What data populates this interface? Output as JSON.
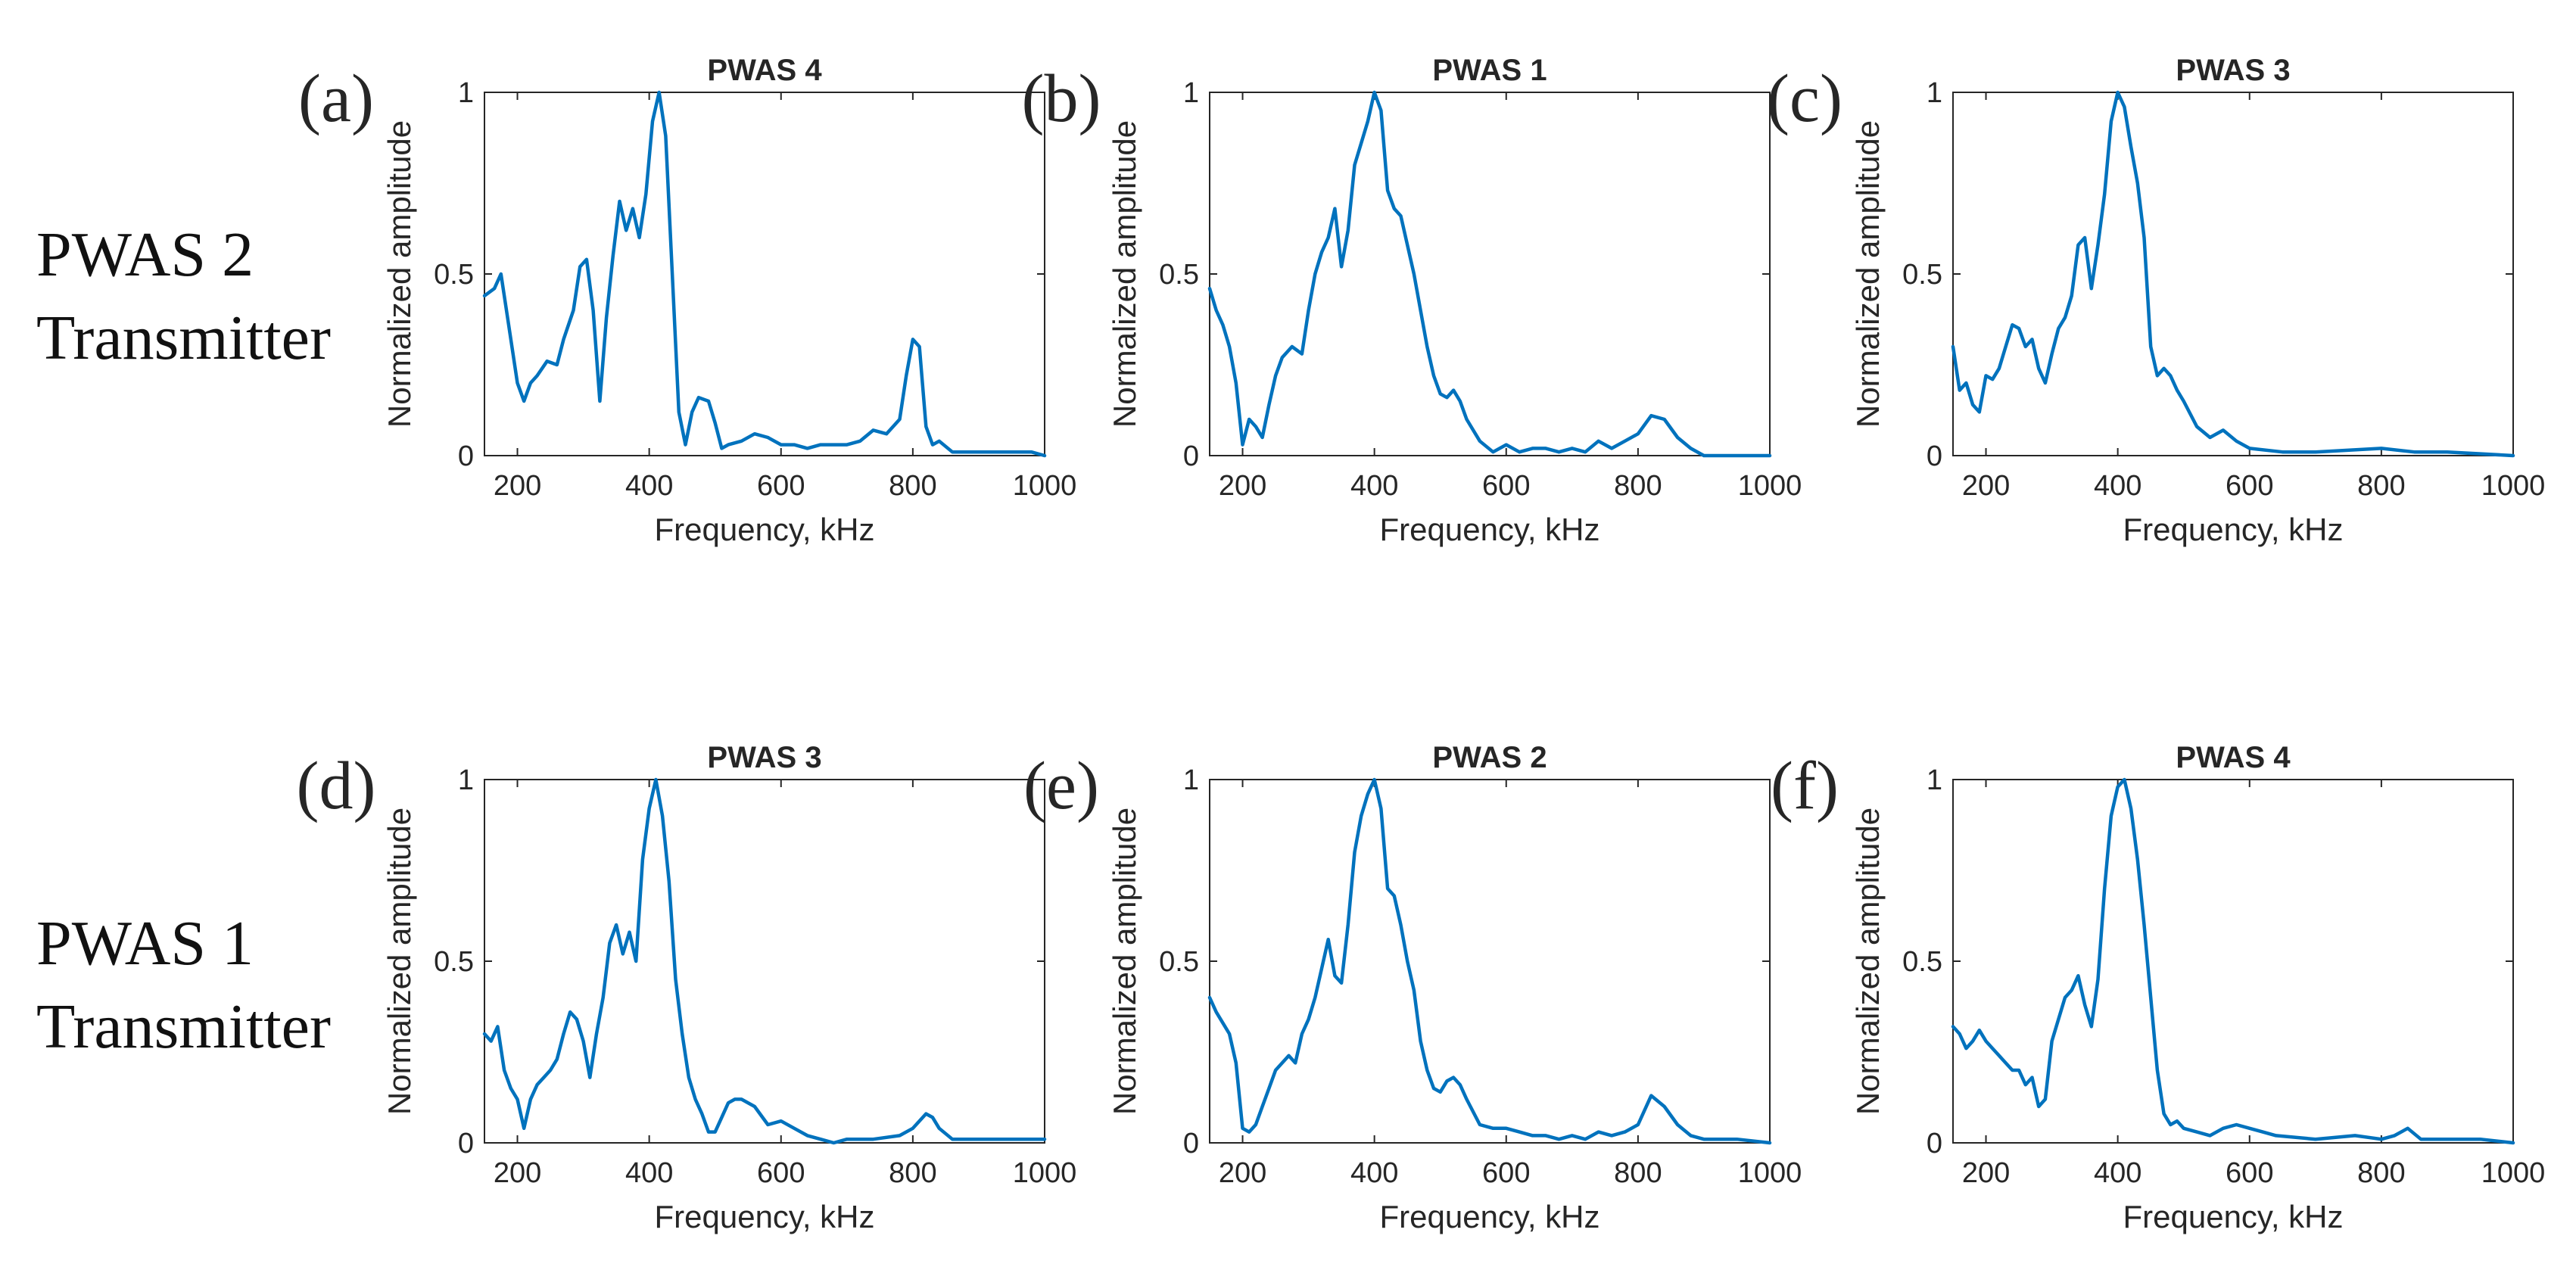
{
  "figure": {
    "row_labels": [
      {
        "line1": "PWAS 2",
        "line2": "Transmitter"
      },
      {
        "line1": "PWAS 1",
        "line2": "Transmitter"
      }
    ]
  },
  "chart_data": [
    {
      "type": "line",
      "panel": "(a)",
      "title": "PWAS 4",
      "xlabel": "Frequency, kHz",
      "ylabel": "Normalized amplitude",
      "xlim": [
        150,
        1000
      ],
      "ylim": [
        0,
        1
      ],
      "xticks": [
        200,
        400,
        600,
        800,
        1000
      ],
      "yticks": [
        0,
        0.5,
        1
      ],
      "ytick_labels": [
        "0",
        "0.5",
        "1"
      ],
      "color": "#0072BD",
      "x": [
        150,
        165,
        175,
        185,
        200,
        210,
        220,
        230,
        245,
        260,
        270,
        285,
        295,
        305,
        315,
        325,
        335,
        345,
        355,
        365,
        375,
        385,
        395,
        405,
        415,
        425,
        435,
        445,
        455,
        465,
        475,
        490,
        500,
        510,
        520,
        540,
        560,
        580,
        600,
        620,
        640,
        660,
        680,
        700,
        720,
        740,
        760,
        780,
        790,
        800,
        810,
        820,
        830,
        840,
        860,
        880,
        900,
        950,
        980,
        1000
      ],
      "y": [
        0.44,
        0.46,
        0.5,
        0.38,
        0.2,
        0.15,
        0.2,
        0.22,
        0.26,
        0.25,
        0.32,
        0.4,
        0.52,
        0.54,
        0.4,
        0.15,
        0.38,
        0.55,
        0.7,
        0.62,
        0.68,
        0.6,
        0.72,
        0.92,
        1.0,
        0.88,
        0.5,
        0.12,
        0.03,
        0.12,
        0.16,
        0.15,
        0.09,
        0.02,
        0.03,
        0.04,
        0.06,
        0.05,
        0.03,
        0.03,
        0.02,
        0.03,
        0.03,
        0.03,
        0.04,
        0.07,
        0.06,
        0.1,
        0.22,
        0.32,
        0.3,
        0.08,
        0.03,
        0.04,
        0.01,
        0.01,
        0.01,
        0.01,
        0.01,
        0.0
      ]
    },
    {
      "type": "line",
      "panel": "(b)",
      "title": "PWAS 1",
      "xlabel": "Frequency, kHz",
      "ylabel": "Normalized amplitude",
      "xlim": [
        150,
        1000
      ],
      "ylim": [
        0,
        1
      ],
      "xticks": [
        200,
        400,
        600,
        800,
        1000
      ],
      "yticks": [
        0,
        0.5,
        1
      ],
      "ytick_labels": [
        "0",
        "0.5",
        "1"
      ],
      "color": "#0072BD",
      "x": [
        150,
        160,
        170,
        180,
        190,
        200,
        210,
        220,
        230,
        240,
        250,
        260,
        275,
        290,
        300,
        310,
        320,
        330,
        340,
        350,
        360,
        370,
        380,
        390,
        400,
        410,
        420,
        430,
        440,
        450,
        460,
        470,
        480,
        490,
        500,
        510,
        520,
        530,
        540,
        560,
        580,
        600,
        620,
        640,
        660,
        680,
        700,
        720,
        740,
        760,
        780,
        800,
        820,
        840,
        860,
        880,
        900,
        950,
        1000
      ],
      "y": [
        0.46,
        0.4,
        0.36,
        0.3,
        0.2,
        0.03,
        0.1,
        0.08,
        0.05,
        0.14,
        0.22,
        0.27,
        0.3,
        0.28,
        0.4,
        0.5,
        0.56,
        0.6,
        0.68,
        0.52,
        0.62,
        0.8,
        0.86,
        0.92,
        1.0,
        0.95,
        0.73,
        0.68,
        0.66,
        0.58,
        0.5,
        0.4,
        0.3,
        0.22,
        0.17,
        0.16,
        0.18,
        0.15,
        0.1,
        0.04,
        0.01,
        0.03,
        0.01,
        0.02,
        0.02,
        0.01,
        0.02,
        0.01,
        0.04,
        0.02,
        0.04,
        0.06,
        0.11,
        0.1,
        0.05,
        0.02,
        0.0,
        0.0,
        0.0
      ]
    },
    {
      "type": "line",
      "panel": "(c)",
      "title": "PWAS 3",
      "xlabel": "Frequency, kHz",
      "ylabel": "Normalized amplitude",
      "xlim": [
        150,
        1000
      ],
      "ylim": [
        0,
        1
      ],
      "xticks": [
        200,
        400,
        600,
        800,
        1000
      ],
      "yticks": [
        0,
        0.5,
        1
      ],
      "ytick_labels": [
        "0",
        "0.5",
        "1"
      ],
      "color": "#0072BD",
      "x": [
        150,
        160,
        170,
        180,
        190,
        200,
        210,
        220,
        230,
        240,
        250,
        260,
        270,
        280,
        290,
        300,
        310,
        320,
        330,
        340,
        350,
        360,
        370,
        380,
        390,
        400,
        410,
        420,
        430,
        440,
        450,
        460,
        470,
        480,
        490,
        500,
        520,
        540,
        560,
        580,
        600,
        650,
        700,
        800,
        850,
        900,
        1000
      ],
      "y": [
        0.3,
        0.18,
        0.2,
        0.14,
        0.12,
        0.22,
        0.21,
        0.24,
        0.3,
        0.36,
        0.35,
        0.3,
        0.32,
        0.24,
        0.2,
        0.28,
        0.35,
        0.38,
        0.44,
        0.58,
        0.6,
        0.46,
        0.58,
        0.72,
        0.92,
        1.0,
        0.96,
        0.85,
        0.75,
        0.6,
        0.3,
        0.22,
        0.24,
        0.22,
        0.18,
        0.15,
        0.08,
        0.05,
        0.07,
        0.04,
        0.02,
        0.01,
        0.01,
        0.02,
        0.01,
        0.01,
        0.0
      ]
    },
    {
      "type": "line",
      "panel": "(d)",
      "title": "PWAS 3",
      "xlabel": "Frequency, kHz",
      "ylabel": "Normalized amplitude",
      "xlim": [
        150,
        1000
      ],
      "ylim": [
        0,
        1
      ],
      "xticks": [
        200,
        400,
        600,
        800,
        1000
      ],
      "yticks": [
        0,
        0.5,
        1
      ],
      "ytick_labels": [
        "0",
        "0.5",
        "1"
      ],
      "color": "#0072BD",
      "x": [
        150,
        160,
        170,
        180,
        190,
        200,
        210,
        220,
        230,
        240,
        250,
        260,
        270,
        280,
        290,
        300,
        310,
        320,
        330,
        340,
        350,
        360,
        370,
        380,
        390,
        400,
        410,
        420,
        430,
        440,
        450,
        460,
        470,
        480,
        490,
        500,
        510,
        520,
        530,
        540,
        560,
        580,
        600,
        620,
        640,
        660,
        680,
        700,
        740,
        780,
        800,
        820,
        830,
        840,
        860,
        900,
        950,
        1000
      ],
      "y": [
        0.3,
        0.28,
        0.32,
        0.2,
        0.15,
        0.12,
        0.04,
        0.12,
        0.16,
        0.18,
        0.2,
        0.23,
        0.3,
        0.36,
        0.34,
        0.28,
        0.18,
        0.3,
        0.4,
        0.55,
        0.6,
        0.52,
        0.58,
        0.5,
        0.78,
        0.92,
        1.0,
        0.9,
        0.72,
        0.45,
        0.3,
        0.18,
        0.12,
        0.08,
        0.03,
        0.03,
        0.07,
        0.11,
        0.12,
        0.12,
        0.1,
        0.05,
        0.06,
        0.04,
        0.02,
        0.01,
        0.0,
        0.01,
        0.01,
        0.02,
        0.04,
        0.08,
        0.07,
        0.04,
        0.01,
        0.01,
        0.01,
        0.01
      ]
    },
    {
      "type": "line",
      "panel": "(e)",
      "title": "PWAS 2",
      "xlabel": "Frequency, kHz",
      "ylabel": "Normalized amplitude",
      "xlim": [
        150,
        1000
      ],
      "ylim": [
        0,
        1
      ],
      "xticks": [
        200,
        400,
        600,
        800,
        1000
      ],
      "yticks": [
        0,
        0.5,
        1
      ],
      "ytick_labels": [
        "0",
        "0.5",
        "1"
      ],
      "color": "#0072BD",
      "x": [
        150,
        160,
        170,
        180,
        190,
        200,
        210,
        220,
        230,
        240,
        250,
        260,
        270,
        280,
        290,
        300,
        310,
        320,
        330,
        340,
        350,
        360,
        370,
        380,
        390,
        400,
        410,
        420,
        430,
        440,
        450,
        460,
        470,
        480,
        490,
        500,
        510,
        520,
        530,
        540,
        560,
        580,
        600,
        620,
        640,
        660,
        680,
        700,
        720,
        740,
        760,
        780,
        800,
        820,
        840,
        860,
        880,
        900,
        950,
        1000
      ],
      "y": [
        0.4,
        0.36,
        0.33,
        0.3,
        0.22,
        0.04,
        0.03,
        0.05,
        0.1,
        0.15,
        0.2,
        0.22,
        0.24,
        0.22,
        0.3,
        0.34,
        0.4,
        0.48,
        0.56,
        0.46,
        0.44,
        0.6,
        0.8,
        0.9,
        0.96,
        1.0,
        0.92,
        0.7,
        0.68,
        0.6,
        0.5,
        0.42,
        0.28,
        0.2,
        0.15,
        0.14,
        0.17,
        0.18,
        0.16,
        0.12,
        0.05,
        0.04,
        0.04,
        0.03,
        0.02,
        0.02,
        0.01,
        0.02,
        0.01,
        0.03,
        0.02,
        0.03,
        0.05,
        0.13,
        0.1,
        0.05,
        0.02,
        0.01,
        0.01,
        0.0
      ]
    },
    {
      "type": "line",
      "panel": "(f)",
      "title": "PWAS 4",
      "xlabel": "Frequency, kHz",
      "ylabel": "Normalized amplitude",
      "xlim": [
        150,
        1000
      ],
      "ylim": [
        0,
        1
      ],
      "xticks": [
        200,
        400,
        600,
        800,
        1000
      ],
      "yticks": [
        0,
        0.5,
        1
      ],
      "ytick_labels": [
        "0",
        "0.5",
        "1"
      ],
      "color": "#0072BD",
      "x": [
        150,
        160,
        170,
        180,
        190,
        200,
        210,
        220,
        230,
        240,
        250,
        260,
        270,
        280,
        290,
        300,
        310,
        320,
        330,
        340,
        350,
        360,
        370,
        380,
        390,
        400,
        410,
        420,
        430,
        440,
        450,
        460,
        470,
        480,
        490,
        500,
        520,
        540,
        560,
        580,
        600,
        620,
        640,
        700,
        760,
        800,
        820,
        840,
        860,
        900,
        950,
        1000
      ],
      "y": [
        0.32,
        0.3,
        0.26,
        0.28,
        0.31,
        0.28,
        0.26,
        0.24,
        0.22,
        0.2,
        0.2,
        0.16,
        0.18,
        0.1,
        0.12,
        0.28,
        0.34,
        0.4,
        0.42,
        0.46,
        0.38,
        0.32,
        0.45,
        0.7,
        0.9,
        0.98,
        1.0,
        0.92,
        0.78,
        0.6,
        0.4,
        0.2,
        0.08,
        0.05,
        0.06,
        0.04,
        0.03,
        0.02,
        0.04,
        0.05,
        0.04,
        0.03,
        0.02,
        0.01,
        0.02,
        0.01,
        0.02,
        0.04,
        0.01,
        0.01,
        0.01,
        0.0
      ]
    }
  ]
}
